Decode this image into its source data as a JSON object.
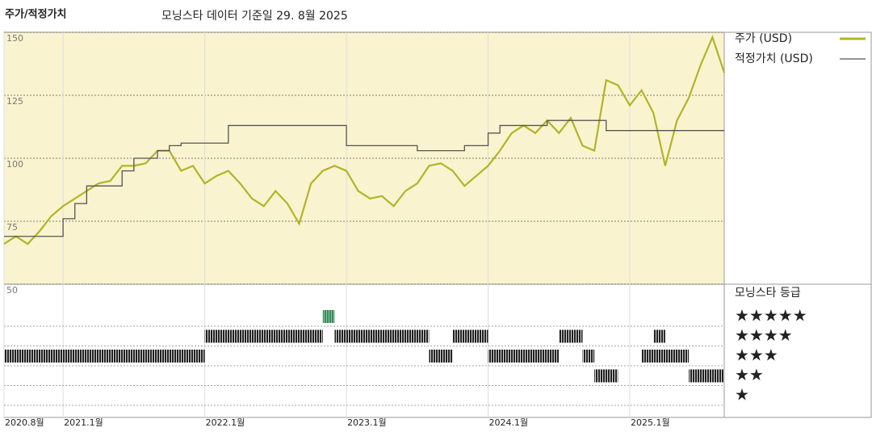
{
  "chart_data": {
    "type": "line",
    "title": "주가/적정가치",
    "subtitle": "모닝스타 데이터 기준일 29. 8월 2025",
    "x": [
      "2020-08",
      "2020-09",
      "2020-10",
      "2020-11",
      "2020-12",
      "2021-01",
      "2021-02",
      "2021-03",
      "2021-04",
      "2021-05",
      "2021-06",
      "2021-07",
      "2021-08",
      "2021-09",
      "2021-10",
      "2021-11",
      "2021-12",
      "2022-01",
      "2022-02",
      "2022-03",
      "2022-04",
      "2022-05",
      "2022-06",
      "2022-07",
      "2022-08",
      "2022-09",
      "2022-10",
      "2022-11",
      "2022-12",
      "2023-01",
      "2023-02",
      "2023-03",
      "2023-04",
      "2023-05",
      "2023-06",
      "2023-07",
      "2023-08",
      "2023-09",
      "2023-10",
      "2023-11",
      "2023-12",
      "2024-01",
      "2024-02",
      "2024-03",
      "2024-04",
      "2024-05",
      "2024-06",
      "2024-07",
      "2024-08",
      "2024-09",
      "2024-10",
      "2024-11",
      "2024-12",
      "2025-01",
      "2025-02",
      "2025-03",
      "2025-04",
      "2025-05",
      "2025-06",
      "2025-07",
      "2025-08",
      "2025-09"
    ],
    "series": [
      {
        "name": "주가 (USD)",
        "color": "#b3b32a",
        "values": [
          66,
          69,
          66,
          71,
          77,
          81,
          84,
          87,
          90,
          91,
          97,
          97,
          98,
          103,
          103,
          95,
          97,
          90,
          93,
          95,
          90,
          84,
          81,
          87,
          82,
          74,
          90,
          95,
          97,
          95,
          87,
          84,
          85,
          81,
          87,
          90,
          97,
          98,
          95,
          89,
          93,
          97,
          103,
          110,
          113,
          110,
          115,
          110,
          116,
          105,
          103,
          131,
          129,
          121,
          127,
          118,
          97,
          115,
          124,
          137,
          148,
          134
        ]
      },
      {
        "name": "적정가치 (USD)",
        "color": "#555555",
        "values": [
          69,
          69,
          69,
          69,
          69,
          76,
          82,
          89,
          89,
          89,
          95,
          100,
          100,
          103,
          105,
          106,
          106,
          106,
          106,
          113,
          113,
          113,
          113,
          113,
          113,
          113,
          113,
          113,
          113,
          105,
          105,
          105,
          105,
          105,
          105,
          103,
          103,
          103,
          103,
          105,
          105,
          110,
          113,
          113,
          113,
          113,
          115,
          115,
          115,
          115,
          115,
          111,
          111,
          111,
          111,
          111,
          111,
          111,
          111,
          111,
          111,
          111
        ]
      }
    ],
    "xlim": [
      "2020-08",
      "2025-09"
    ],
    "xticks": [
      {
        "value": "2020-08",
        "label": "2020.8월"
      },
      {
        "value": "2021-01",
        "label": "2021.1월"
      },
      {
        "value": "2022-01",
        "label": "2022.1월"
      },
      {
        "value": "2023-01",
        "label": "2023.1월"
      },
      {
        "value": "2024-01",
        "label": "2024.1월"
      },
      {
        "value": "2025-01",
        "label": "2025.1월"
      }
    ],
    "ylim": [
      50,
      150
    ],
    "yticks": [
      50,
      75,
      100,
      125,
      150
    ],
    "ratings": {
      "title": "모닝스타 등급",
      "levels": [
        {
          "stars": 5,
          "label": "★★★★★",
          "color": "#3a8a5a"
        },
        {
          "stars": 4,
          "label": "★★★★",
          "color": "#333333"
        },
        {
          "stars": 3,
          "label": "★★★",
          "color": "#333333"
        },
        {
          "stars": 2,
          "label": "★★",
          "color": "#333333"
        },
        {
          "stars": 1,
          "label": "★",
          "color": "#333333"
        }
      ],
      "segments": [
        {
          "from": "2020-08",
          "to": "2022-01",
          "stars": 3
        },
        {
          "from": "2022-01",
          "to": "2022-11",
          "stars": 4
        },
        {
          "from": "2022-11",
          "to": "2022-12",
          "stars": 5
        },
        {
          "from": "2022-12",
          "to": "2023-08",
          "stars": 4
        },
        {
          "from": "2023-08",
          "to": "2023-10",
          "stars": 3
        },
        {
          "from": "2023-10",
          "to": "2024-01",
          "stars": 4
        },
        {
          "from": "2024-01",
          "to": "2024-07",
          "stars": 3
        },
        {
          "from": "2024-07",
          "to": "2024-09",
          "stars": 4
        },
        {
          "from": "2024-09",
          "to": "2024-10",
          "stars": 3
        },
        {
          "from": "2024-10",
          "to": "2024-12",
          "stars": 2
        },
        {
          "from": "2025-02",
          "to": "2025-06",
          "stars": 3
        },
        {
          "from": "2025-03",
          "to": "2025-04",
          "stars": 4
        },
        {
          "from": "2025-06",
          "to": "2025-09",
          "stars": 2
        }
      ]
    }
  }
}
